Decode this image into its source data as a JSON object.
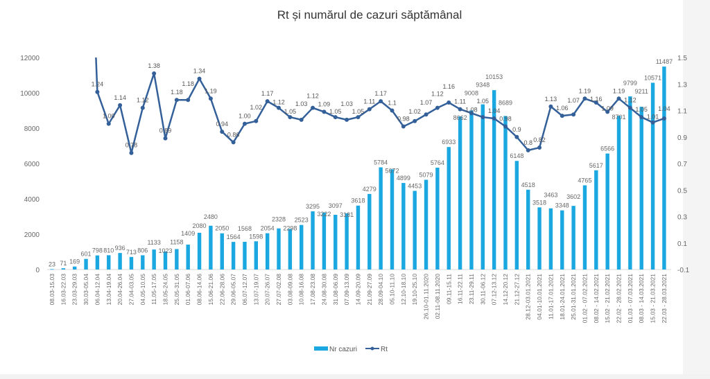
{
  "chart_data": {
    "type": "bar+line",
    "title": "Rt și numărul de cazuri săptămânal",
    "categories": [
      "08.03-15.03",
      "16.03-22.03",
      "23.03-29.03",
      "30.03-05.04",
      "06.04-12.04",
      "13.04-19.04",
      "20.04-26.04",
      "27.04-03.05",
      "04.05-10.05",
      "11.05-17.05",
      "18.05-24.05",
      "25.05-31.05",
      "01.06-07.06",
      "08.06-14.06",
      "15.06-21.06",
      "22.06-28.06",
      "29.06-05.07",
      "06.07-12.07",
      "13.07-19.07",
      "20.07-26.07",
      "27.07-02.08",
      "03.08-09.08",
      "10.08-16.08",
      "17.08-23.08",
      "24.08-30.08",
      "31.08-06.09",
      "07.09-13.09",
      "14.09-20.09",
      "21.09-27.09",
      "28.09-04.10",
      "05.10-11.10",
      "12.10-18.10",
      "19.10-25.10",
      "26.10-01.11.2020",
      "02.11-08.11.2020",
      "09.11-15.11",
      "16.11-22.11",
      "23.11-29.11",
      "30.11-06.12",
      "07.12-13.12",
      "14.12-20.12",
      "21.12-27.12",
      "28.12-03.01.2021",
      "04.01-10.01.2021",
      "11.01-17.01.2021",
      "18.01-24.01.2021",
      "25.01-31.01.2021",
      "01.02 - 07.02.2021",
      "08.02 - 14.02.2021",
      "15.02 - 21.02.2021",
      "22.02 - 28.02.2021",
      "01.03 - 07.03.2021",
      "08.03 - 14.03.2021",
      "15.03 - 21.03.2021",
      "22.03 - 28.03.2021"
    ],
    "series": [
      {
        "name": "Nr cazuri",
        "type": "bar",
        "axis": "left",
        "color": "#1ba7e0",
        "values": [
          23,
          71,
          169,
          601,
          798,
          810,
          936,
          713,
          806,
          1133,
          1023,
          1158,
          1409,
          2080,
          2480,
          2050,
          1564,
          1568,
          1598,
          2054,
          2328,
          2298,
          2523,
          3295,
          3222,
          3097,
          3181,
          3618,
          4279,
          5784,
          5672,
          4899,
          4453,
          5079,
          5764,
          6933,
          8662,
          9008,
          9348,
          10153,
          8689,
          6148,
          4518,
          3518,
          3463,
          3348,
          3602,
          4765,
          5617,
          6566,
          8701,
          9799,
          9211,
          10571,
          11487
        ]
      },
      {
        "name": "Rt",
        "type": "line",
        "axis": "right",
        "color": "#34609a",
        "values": [
          null,
          null,
          null,
          null,
          1.24,
          1.0,
          1.14,
          0.78,
          1.12,
          1.38,
          0.89,
          1.18,
          1.18,
          1.34,
          1.19,
          0.94,
          0.86,
          1.0,
          1.02,
          1.17,
          1.12,
          1.05,
          1.03,
          1.12,
          1.09,
          1.05,
          1.03,
          1.05,
          1.11,
          1.17,
          1.1,
          0.98,
          1.02,
          1.07,
          1.12,
          1.16,
          1.11,
          1.08,
          1.05,
          1.04,
          0.98,
          0.9,
          0.8,
          0.82,
          1.13,
          1.06,
          1.07,
          1.19,
          1.16,
          1.09,
          1.19,
          1.12,
          1.05,
          1.01,
          1.04
        ],
        "labels": [
          null,
          null,
          null,
          null,
          "1.24",
          "1.00",
          "1.14",
          "0.78",
          "1.12",
          "1.38",
          "0.89",
          "1.18",
          "1.18",
          "1.34",
          "1.19",
          "0.94",
          "0.86",
          "1.00",
          "1.02",
          "1.17",
          "1.12",
          "1.05",
          "1.03",
          "1.12",
          "1.09",
          "1.05",
          "1.03",
          "1.05",
          "1.11",
          "1.17",
          "1.1",
          "0.98",
          "1.02",
          "1.07",
          "1.12",
          "1.16",
          "1.11",
          "1.08",
          "1.05",
          "1.04",
          "0.98",
          "0.9",
          "0.8",
          "0.82",
          "1.13",
          "1.06",
          "1.07",
          "1.19",
          "1.16",
          "1.09",
          "1.19",
          "1.12",
          "1.05",
          "1.01",
          "1.04"
        ]
      }
    ],
    "left_axis": {
      "ylim": [
        0,
        12000
      ],
      "ticks": [
        "0",
        "2000",
        "4000",
        "6000",
        "8000",
        "10000",
        "12000"
      ]
    },
    "right_axis": {
      "ylim": [
        -0.1,
        1.5
      ],
      "ticks": [
        "-0.1",
        "0.1",
        "0.3",
        "0.5",
        "0.7",
        "0.9",
        "1.1",
        "1.3",
        "1.5"
      ]
    },
    "legend": {
      "placement": "bottom",
      "entries": [
        "Nr cazuri",
        "Rt"
      ]
    },
    "grid": false
  }
}
